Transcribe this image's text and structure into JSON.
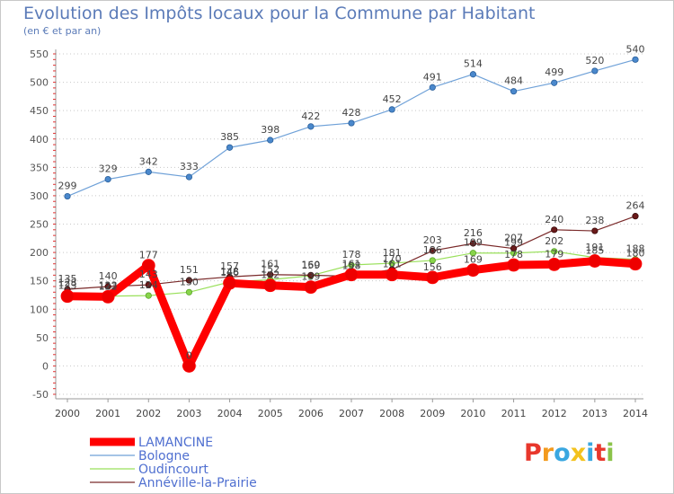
{
  "header": {
    "title": "Evolution des Impôts locaux pour la Commune par Habitant",
    "subtitle": "(en € et par an)"
  },
  "logo": {
    "text": "Proxiti",
    "letters": [
      {
        "char": "P",
        "color": "#e8372c"
      },
      {
        "char": "r",
        "color": "#f39a1e"
      },
      {
        "char": "o",
        "color": "#3aa7e0"
      },
      {
        "char": "x",
        "color": "#f3c21e"
      },
      {
        "char": "i",
        "color": "#3aa7e0"
      },
      {
        "char": "t",
        "color": "#e8372c"
      },
      {
        "char": "i",
        "color": "#8bc34a"
      }
    ]
  },
  "chart_data": {
    "type": "line",
    "title": "Evolution des Impôts locaux pour la Commune par Habitant",
    "subtitle": "(en € et par an)",
    "x": [
      2000,
      2001,
      2002,
      2003,
      2004,
      2005,
      2006,
      2007,
      2008,
      2009,
      2010,
      2011,
      2012,
      2013,
      2014
    ],
    "ylim": [
      -50,
      550
    ],
    "yticks": [
      -50,
      0,
      50,
      100,
      150,
      200,
      250,
      300,
      350,
      400,
      450,
      500,
      550
    ],
    "grid": "horizontal-dotted",
    "legend": "bottom-left",
    "series": [
      {
        "name": "LAMANCINE",
        "color": "#ff0000",
        "values": [
          123,
          122,
          177,
          0,
          146,
          142,
          139,
          161,
          161,
          156,
          169,
          178,
          179,
          185,
          180
        ]
      },
      {
        "name": "Bologne",
        "color": "#6fa1d8",
        "values": [
          299,
          329,
          342,
          333,
          385,
          398,
          422,
          428,
          452,
          491,
          514,
          484,
          499,
          520,
          540
        ]
      },
      {
        "name": "Oudincourt",
        "color": "#99e05a",
        "values": [
          128,
          123,
          124,
          130,
          148,
          152,
          159,
          178,
          181,
          186,
          199,
          199,
          202,
          191,
          188
        ]
      },
      {
        "name": "Annéville-la-Prairie",
        "color": "#7a2a2a",
        "values": [
          135,
          140,
          143,
          151,
          157,
          161,
          160,
          158,
          170,
          203,
          216,
          207,
          240,
          238,
          264
        ]
      }
    ]
  }
}
